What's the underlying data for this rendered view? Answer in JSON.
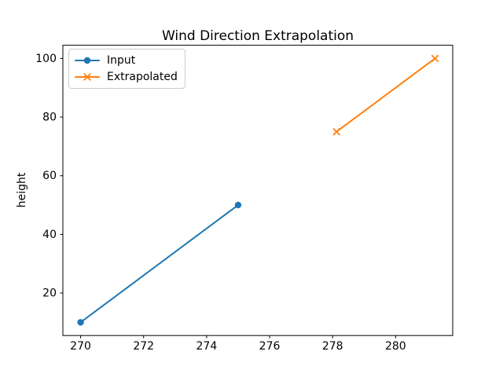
{
  "chart_data": {
    "type": "line",
    "title": "Wind Direction Extrapolation",
    "xlabel": "",
    "ylabel": "height",
    "xlim": [
      269.4375,
      281.8125
    ],
    "ylim": [
      5.5,
      104.5
    ],
    "x_ticks": [
      270,
      272,
      274,
      276,
      278,
      280
    ],
    "y_ticks": [
      20,
      40,
      60,
      80,
      100
    ],
    "grid": false,
    "legend_position": "upper left",
    "series": [
      {
        "name": "Input",
        "color": "#1f77b4",
        "marker": "circle",
        "x": [
          270,
          275
        ],
        "y": [
          10,
          50
        ]
      },
      {
        "name": "Extrapolated",
        "color": "#ff7f0e",
        "marker": "x",
        "x": [
          278.125,
          281.25
        ],
        "y": [
          75,
          100
        ]
      }
    ],
    "colors": {
      "spine": "#000000",
      "background": "#ffffff",
      "legend_border": "#cccccc"
    }
  }
}
